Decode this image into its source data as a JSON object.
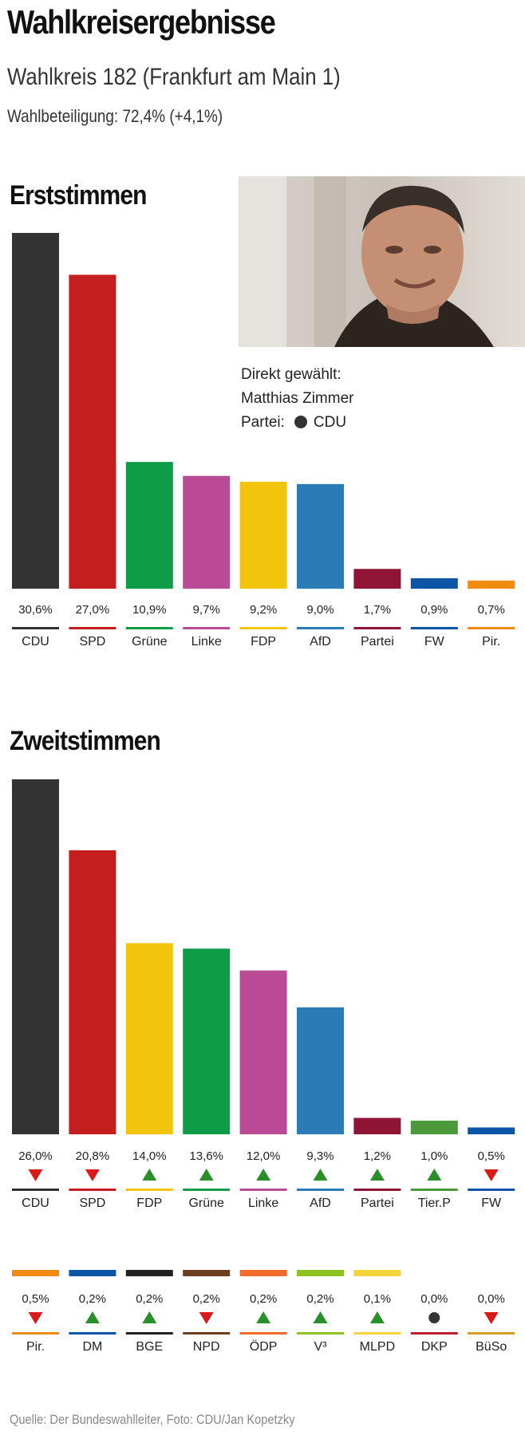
{
  "header": {
    "title": "Wahlkreisergebnisse",
    "subtitle": "Wahlkreis 182 (Frankfurt am Main 1)",
    "turnout": "Wahlbeteiligung: 72,4%  (+4,1%)"
  },
  "winner": {
    "label": "Direkt gewählt:",
    "name": "Matthias Zimmer",
    "party_label": "Partei:",
    "party": "CDU"
  },
  "footer": {
    "source": "Quelle: Der Bundeswahlleiter,  Foto: CDU/Jan Kopetzky"
  },
  "chart_data": [
    {
      "type": "bar",
      "title": "Erststimmen",
      "ylim": [
        0,
        30.6
      ],
      "categories": [
        "CDU",
        "SPD",
        "Grüne",
        "Linke",
        "FDP",
        "AfD",
        "Partei",
        "FW",
        "Pir."
      ],
      "values": [
        30.6,
        27.0,
        10.9,
        9.7,
        9.2,
        9.0,
        1.7,
        0.9,
        0.7
      ],
      "labels": [
        "30,6%",
        "27,0%",
        "10,9%",
        "9,7%",
        "9,2%",
        "9,0%",
        "1,7%",
        "0,9%",
        "0,7%"
      ],
      "colors": [
        "#333333",
        "#c41e1e",
        "#0e9c48",
        "#b84a96",
        "#f2c40c",
        "#2b7bb7",
        "#8e1535",
        "#0c54a5",
        "#f08a11"
      ]
    },
    {
      "type": "bar",
      "title": "Zweitstimmen",
      "ylim": [
        0,
        26.0
      ],
      "categories": [
        "CDU",
        "SPD",
        "FDP",
        "Grüne",
        "Linke",
        "AfD",
        "Partei",
        "Tier.P",
        "FW"
      ],
      "values": [
        26.0,
        20.8,
        14.0,
        13.6,
        12.0,
        9.3,
        1.2,
        1.0,
        0.5
      ],
      "labels": [
        "26,0%",
        "20,8%",
        "14,0%",
        "13,6%",
        "12,0%",
        "9,3%",
        "1,2%",
        "1,0%",
        "0,5%"
      ],
      "colors": [
        "#333333",
        "#c41e1e",
        "#f2c40c",
        "#0e9c48",
        "#b84a96",
        "#2b7bb7",
        "#8e1535",
        "#4a9a3c",
        "#0c54a5"
      ],
      "trend": [
        "down",
        "down",
        "up",
        "up",
        "up",
        "up",
        "up",
        "up",
        "down"
      ]
    },
    {
      "type": "bar",
      "title": "",
      "categories": [
        "Pir.",
        "DM",
        "BGE",
        "NPD",
        "ÖDP",
        "V³",
        "MLPD",
        "DKP",
        "BüSo"
      ],
      "values": [
        0.5,
        0.2,
        0.2,
        0.2,
        0.2,
        0.2,
        0.1,
        0.0,
        0.0
      ],
      "labels": [
        "0,5%",
        "0,2%",
        "0,2%",
        "0,2%",
        "0,2%",
        "0,2%",
        "0,1%",
        "0,0%",
        "0,0%"
      ],
      "colors": [
        "#f08a11",
        "#0c54a5",
        "#222222",
        "#6b3f1e",
        "#f26b2a",
        "#8dc21f",
        "#f5d33b",
        "#bd1e2d",
        "#d6a01e"
      ],
      "trend": [
        "down",
        "up",
        "up",
        "down",
        "up",
        "up",
        "up",
        "neutral",
        "down"
      ]
    }
  ]
}
